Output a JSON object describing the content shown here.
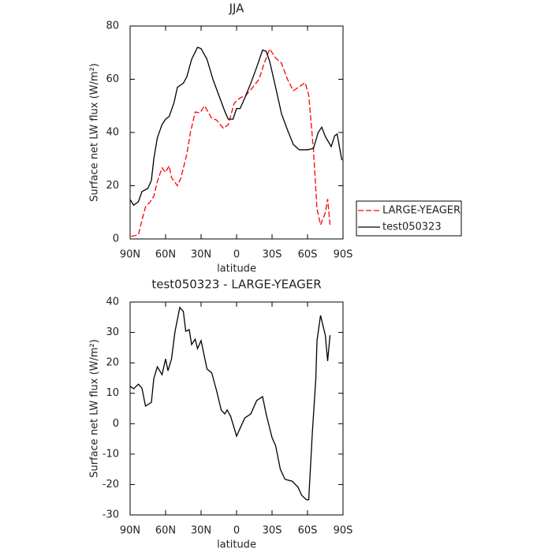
{
  "chart_data": [
    {
      "type": "line",
      "title": "JJA",
      "xlabel": "latitude",
      "ylabel": "Surface net LW flux (W/m²)",
      "xlim": [
        90,
        -90
      ],
      "xticks": [
        {
          "value": 90,
          "label": "90N"
        },
        {
          "value": 60,
          "label": "60N"
        },
        {
          "value": 30,
          "label": "30N"
        },
        0,
        {
          "value": -30,
          "label": "30S"
        },
        {
          "value": -60,
          "label": "60S"
        },
        {
          "value": -90,
          "label": "90S"
        }
      ],
      "ylim": [
        0,
        80
      ],
      "yticks": [
        0,
        20,
        40,
        60,
        80
      ],
      "legend": "right",
      "series": [
        {
          "name": "LARGE-YEAGER",
          "color": "#ff0000",
          "dash": true,
          "x": [
            89,
            83,
            80,
            77,
            73,
            70,
            67,
            63,
            60,
            57,
            55,
            50,
            47,
            42,
            39,
            35,
            31,
            27,
            21,
            17,
            11,
            7,
            2,
            -3,
            -8,
            -13,
            -19,
            -23,
            -28,
            -33,
            -38,
            -43,
            -48,
            -53,
            -58,
            -61,
            -65,
            -68,
            -71,
            -75,
            -77,
            -79
          ],
          "values": [
            1,
            1.5,
            7,
            12,
            14,
            16,
            21.6,
            26.7,
            25,
            27.5,
            23,
            20,
            23,
            32,
            40,
            47.7,
            47.4,
            50,
            45.3,
            44.7,
            41.5,
            43,
            51,
            53,
            54,
            56.6,
            60,
            65.5,
            71.4,
            68,
            66,
            60,
            55.7,
            57.2,
            58.7,
            54,
            33.5,
            11.3,
            5.3,
            9.8,
            15,
            5.3
          ]
        },
        {
          "name": "test050323",
          "color": "#000000",
          "dash": false,
          "x": [
            90,
            87,
            83,
            80,
            75,
            72,
            70,
            67,
            63,
            60,
            57,
            53,
            50,
            45,
            42,
            38,
            33,
            30,
            25,
            20,
            15,
            10,
            7,
            3,
            0,
            -3,
            -7,
            -12,
            -17,
            -22,
            -25,
            -28,
            -33,
            -38,
            -43,
            -48,
            -53,
            -60,
            -65,
            -69,
            -72,
            -75,
            -80,
            -83,
            -85,
            -89
          ],
          "values": [
            14.8,
            12.7,
            14,
            17.8,
            19,
            22,
            30,
            38,
            43,
            45,
            46,
            51,
            57,
            58.5,
            61,
            67.5,
            72,
            71.5,
            67.5,
            60,
            54,
            48,
            45,
            45,
            49,
            49,
            53,
            58.5,
            64.5,
            71,
            70.5,
            66.7,
            57,
            47,
            41,
            35.5,
            33.5,
            33.5,
            34,
            40,
            42,
            38.5,
            34.7,
            38.8,
            39.4,
            29.6
          ]
        }
      ]
    },
    {
      "type": "line",
      "title": "test050323 - LARGE-YEAGER",
      "xlabel": "latitude",
      "ylabel": "Surface net LW flux (W/m²)",
      "xlim": [
        90,
        -90
      ],
      "xticks": [
        {
          "value": 90,
          "label": "90N"
        },
        {
          "value": 60,
          "label": "60N"
        },
        {
          "value": 30,
          "label": "30N"
        },
        0,
        {
          "value": -30,
          "label": "30S"
        },
        {
          "value": -60,
          "label": "60S"
        },
        {
          "value": -90,
          "label": "90S"
        }
      ],
      "ylim": [
        -30,
        40
      ],
      "yticks": [
        -30,
        -20,
        -10,
        0,
        10,
        20,
        30,
        40
      ],
      "series": [
        {
          "color": "#000000",
          "dash": false,
          "x": [
            90,
            87,
            83,
            80,
            77,
            72,
            70,
            67,
            63,
            60,
            58,
            55,
            52,
            48,
            45,
            43,
            40,
            38,
            35,
            33,
            30,
            25,
            21,
            17,
            13,
            10,
            8,
            5,
            0,
            -3,
            -7,
            -12,
            -17,
            -22,
            -25,
            -30,
            -33,
            -37,
            -41,
            -47,
            -52,
            -55,
            -59,
            -61,
            -64,
            -67,
            -68,
            -71,
            -75,
            -77,
            -79
          ],
          "values": [
            12.3,
            11.5,
            13,
            11.7,
            5.8,
            7,
            14.8,
            18.7,
            16.1,
            21.3,
            17.4,
            21.3,
            30.4,
            38.2,
            36.9,
            30.4,
            30.9,
            26,
            27.8,
            24.7,
            27.3,
            18,
            16.7,
            11,
            4.5,
            3.2,
            4.5,
            2.4,
            -4.1,
            -1.5,
            1.9,
            3.2,
            7.6,
            8.9,
            3.2,
            -4.6,
            -7.2,
            -15,
            -18.3,
            -18.9,
            -20.9,
            -23.5,
            -25,
            -25,
            -3.3,
            14.8,
            27.3,
            35.6,
            29.1,
            20.6,
            29.1
          ]
        }
      ]
    }
  ]
}
